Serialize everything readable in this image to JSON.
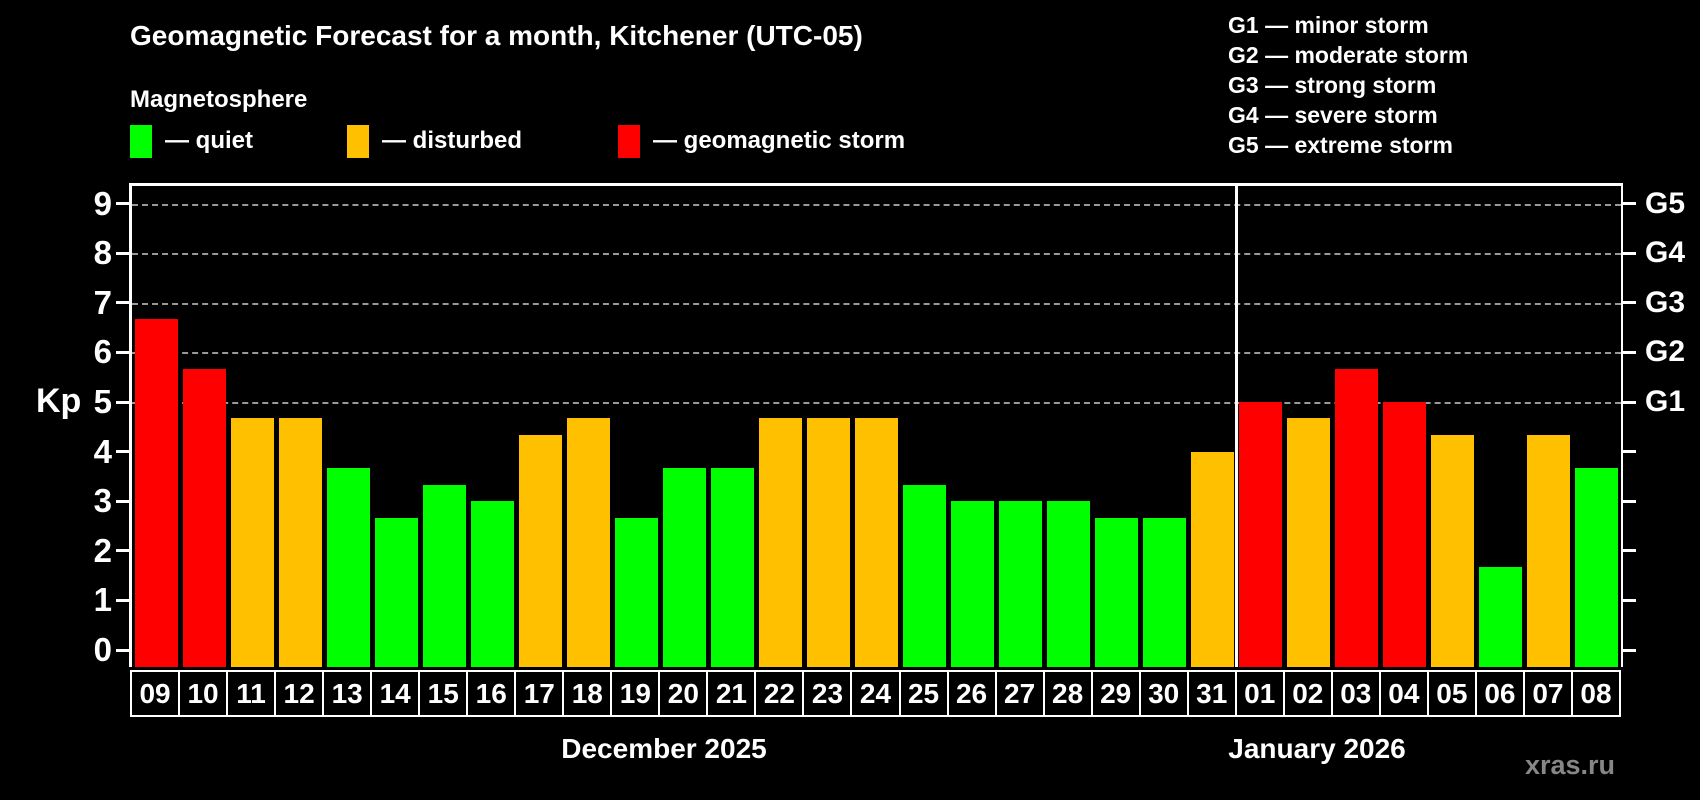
{
  "title": "Geomagnetic Forecast for a month, Kitchener (UTC-05)",
  "subtitle": "Magnetosphere",
  "colors": {
    "quiet": "#00ff00",
    "disturbed": "#ffc000",
    "storm": "#ff0000",
    "grid": "#999999",
    "axis": "#ffffff",
    "watermark": "#878787"
  },
  "legend": [
    {
      "label": "— quiet",
      "status": "quiet"
    },
    {
      "label": "— disturbed",
      "status": "disturbed"
    },
    {
      "label": "— geomagnetic storm",
      "status": "storm"
    }
  ],
  "storm_scale_legend": [
    "G1 — minor storm",
    "G2 — moderate storm",
    "G3 — strong storm",
    "G4 — severe storm",
    "G5 — extreme storm"
  ],
  "y_axis": {
    "label": "Kp",
    "ticks": [
      0,
      1,
      2,
      3,
      4,
      5,
      6,
      7,
      8,
      9
    ]
  },
  "right_axis": {
    "labels": [
      {
        "kp": 5,
        "text": "G1"
      },
      {
        "kp": 6,
        "text": "G2"
      },
      {
        "kp": 7,
        "text": "G3"
      },
      {
        "kp": 8,
        "text": "G4"
      },
      {
        "kp": 9,
        "text": "G5"
      }
    ]
  },
  "months": [
    {
      "label": "December 2025"
    },
    {
      "label": "January 2026"
    }
  ],
  "watermark": "xras.ru",
  "chart_data": {
    "type": "bar",
    "title": "Geomagnetic Forecast for a month, Kitchener (UTC-05)",
    "ylabel": "Kp",
    "ylim": [
      0,
      9
    ],
    "gridlines_at": [
      5,
      6,
      7,
      8,
      9
    ],
    "legend_position": "top",
    "series": [
      {
        "month": "December 2025",
        "points": [
          {
            "day": "09",
            "kp": 6.67,
            "status": "storm"
          },
          {
            "day": "10",
            "kp": 5.67,
            "status": "storm"
          },
          {
            "day": "11",
            "kp": 4.67,
            "status": "disturbed"
          },
          {
            "day": "12",
            "kp": 4.67,
            "status": "disturbed"
          },
          {
            "day": "13",
            "kp": 3.67,
            "status": "quiet"
          },
          {
            "day": "14",
            "kp": 2.67,
            "status": "quiet"
          },
          {
            "day": "15",
            "kp": 3.33,
            "status": "quiet"
          },
          {
            "day": "16",
            "kp": 3.0,
            "status": "quiet"
          },
          {
            "day": "17",
            "kp": 4.33,
            "status": "disturbed"
          },
          {
            "day": "18",
            "kp": 4.67,
            "status": "disturbed"
          },
          {
            "day": "19",
            "kp": 2.67,
            "status": "quiet"
          },
          {
            "day": "20",
            "kp": 3.67,
            "status": "quiet"
          },
          {
            "day": "21",
            "kp": 3.67,
            "status": "quiet"
          },
          {
            "day": "22",
            "kp": 4.67,
            "status": "disturbed"
          },
          {
            "day": "23",
            "kp": 4.67,
            "status": "disturbed"
          },
          {
            "day": "24",
            "kp": 4.67,
            "status": "disturbed"
          },
          {
            "day": "25",
            "kp": 3.33,
            "status": "quiet"
          },
          {
            "day": "26",
            "kp": 3.0,
            "status": "quiet"
          },
          {
            "day": "27",
            "kp": 3.0,
            "status": "quiet"
          },
          {
            "day": "28",
            "kp": 3.0,
            "status": "quiet"
          },
          {
            "day": "29",
            "kp": 2.67,
            "status": "quiet"
          },
          {
            "day": "30",
            "kp": 2.67,
            "status": "quiet"
          },
          {
            "day": "31",
            "kp": 4.0,
            "status": "disturbed"
          }
        ]
      },
      {
        "month": "January 2026",
        "points": [
          {
            "day": "01",
            "kp": 5.0,
            "status": "storm"
          },
          {
            "day": "02",
            "kp": 4.67,
            "status": "disturbed"
          },
          {
            "day": "03",
            "kp": 5.67,
            "status": "storm"
          },
          {
            "day": "04",
            "kp": 5.0,
            "status": "storm"
          },
          {
            "day": "05",
            "kp": 4.33,
            "status": "disturbed"
          },
          {
            "day": "06",
            "kp": 1.67,
            "status": "quiet"
          },
          {
            "day": "07",
            "kp": 4.33,
            "status": "disturbed"
          },
          {
            "day": "08",
            "kp": 3.67,
            "status": "quiet"
          }
        ]
      }
    ]
  }
}
